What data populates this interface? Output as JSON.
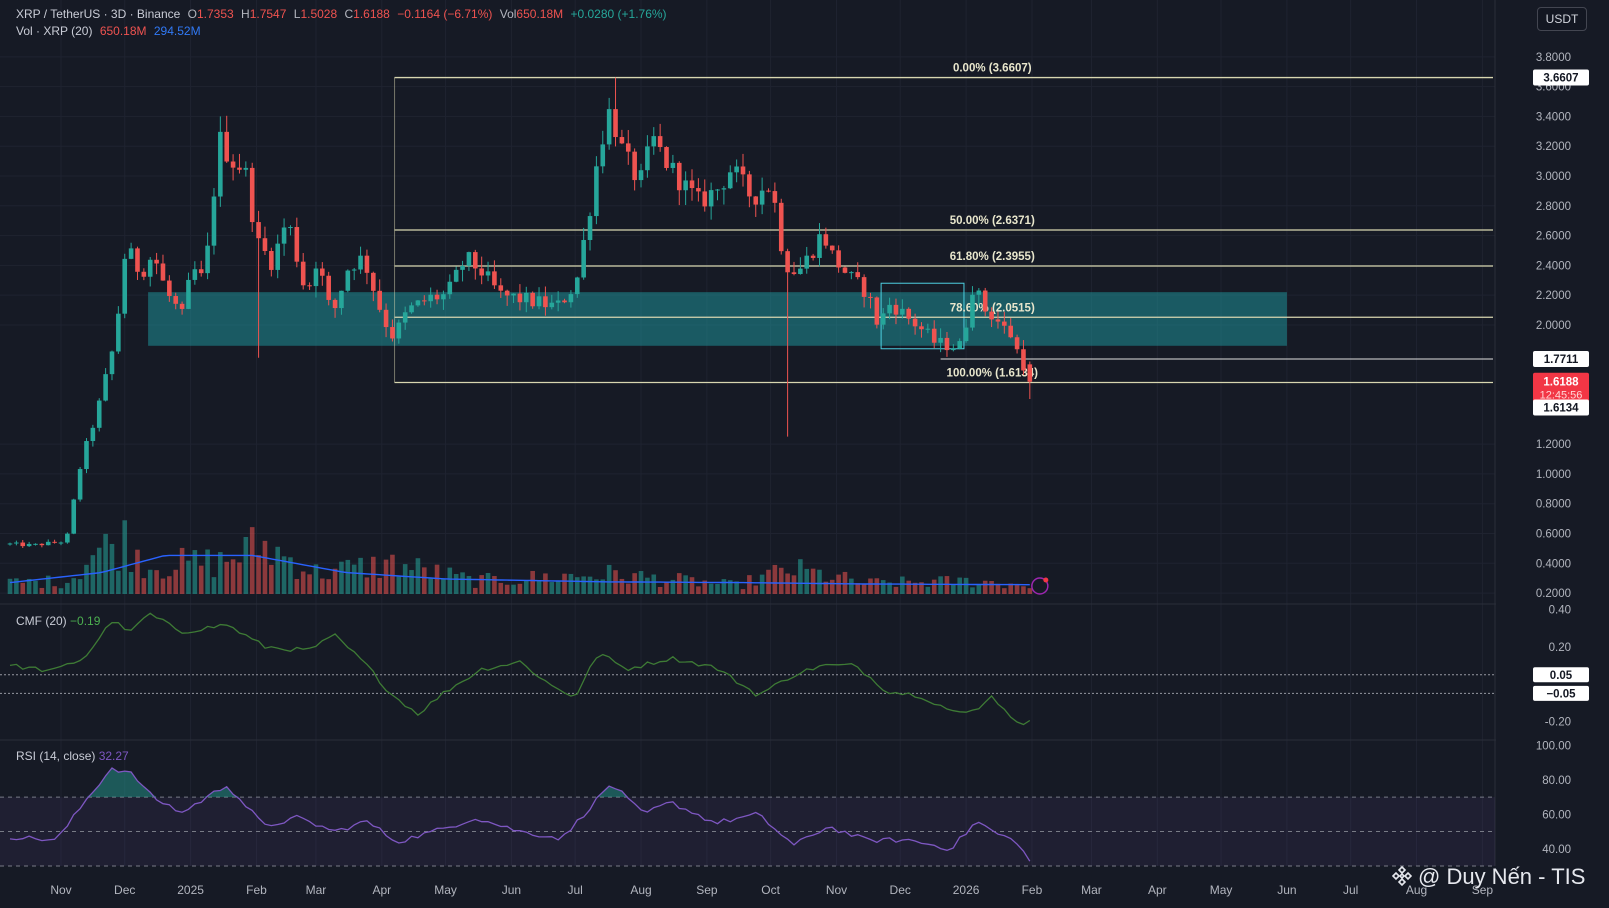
{
  "header": {
    "symbol": "XRP / TetherUS · 3D · Binance",
    "open_label": "O",
    "open": "1.7353",
    "high_label": "H",
    "high": "1.7547",
    "low_label": "L",
    "low": "1.5028",
    "close_label": "C",
    "close": "1.6188",
    "change": "−0.1164 (−6.71%)",
    "vol_label": "Vol",
    "vol": "650.18M",
    "vol_change": "+0.0280 (+1.76%)",
    "vol_indicator": "Vol · XRP (20)",
    "vol_value": "650.18M",
    "vol_ma": "294.52M"
  },
  "unit_button": "USDT",
  "cmf": {
    "label": "CMF (20)",
    "value": "−0.19"
  },
  "rsi": {
    "label": "RSI (14, close)",
    "value": "32.27"
  },
  "watermark": "@ Duy Nến - TIS",
  "colors": {
    "background": "#161a25",
    "up": "#26a69a",
    "down": "#ef5350",
    "fib_line": "#d8d6b0",
    "zone": "#1f8f98",
    "vol_ma": "#2962ff",
    "cmf_line": "#3e7b35",
    "rsi_line": "#7e57c2",
    "last_price_badge": "#f23645"
  },
  "chart_data": {
    "type": "candlestick",
    "title": "XRP / TetherUS · 3D · Binance",
    "x_axis": {
      "ticks": [
        "Nov",
        "Dec",
        "2025",
        "Feb",
        "Mar",
        "Apr",
        "May",
        "Jun",
        "Jul",
        "Aug",
        "Sep",
        "Oct",
        "Nov",
        "Dec",
        "2026",
        "Feb",
        "Mar",
        "Apr",
        "May",
        "Jun",
        "Jul",
        "Aug",
        "Sep"
      ],
      "tick_dates": [
        "2024-11-01",
        "2024-12-01",
        "2025-01-01",
        "2025-02-01",
        "2025-03-01",
        "2025-04-01",
        "2025-05-01",
        "2025-06-01",
        "2025-07-01",
        "2025-08-01",
        "2025-09-01",
        "2025-10-01",
        "2025-11-01",
        "2025-12-01",
        "2026-01-01",
        "2026-02-01",
        "2026-03-01",
        "2026-04-01",
        "2026-05-01",
        "2026-06-01",
        "2026-07-01",
        "2026-08-01",
        "2026-09-01"
      ],
      "range": [
        "2024-10-08",
        "2026-09-06"
      ]
    },
    "price_axis": {
      "ticks": [
        "3.8000",
        "3.6000",
        "3.4000",
        "3.2000",
        "3.0000",
        "2.8000",
        "2.6000",
        "2.4000",
        "2.2000",
        "2.0000",
        "1.2000",
        "1.0000",
        "0.8000",
        "0.6000",
        "0.4000",
        "0.2000"
      ],
      "range": [
        0.14,
        3.98
      ],
      "badges": [
        {
          "label": "3.6607",
          "value": 3.6607,
          "kind": "fib"
        },
        {
          "label": "1.7711",
          "value": 1.7711,
          "kind": "line"
        },
        {
          "label": "1.6188",
          "value": 1.6188,
          "kind": "last",
          "countdown": "12:45:56"
        },
        {
          "label": "1.6134",
          "value": 1.6134,
          "kind": "fib"
        }
      ]
    },
    "fibonacci": {
      "start_date": "2025-04-07",
      "end_date": "2026-09-06",
      "levels": [
        {
          "label": "0.00% (3.6607)",
          "value": 3.6607
        },
        {
          "label": "50.00% (2.6371)",
          "value": 2.6371
        },
        {
          "label": "61.80% (2.3955)",
          "value": 2.3955
        },
        {
          "label": "78.60% (2.0515)",
          "value": 2.0515
        },
        {
          "label": "100.00% (1.6134)",
          "value": 1.6134
        }
      ]
    },
    "zones": [
      {
        "start_date": "2024-12-12",
        "end_date": "2026-06-01",
        "top": 2.22,
        "bottom": 1.86
      }
    ],
    "rectangles": [
      {
        "start_date": "2025-11-22",
        "end_date": "2025-12-31",
        "top": 2.28,
        "bottom": 1.84
      }
    ],
    "lines": [
      {
        "label": "1.7711",
        "start_date": "2025-12-20",
        "end_date": "2026-09-06",
        "value": 1.7711
      }
    ],
    "anchors": [
      {
        "date": "2024-10-08",
        "close": 0.53
      },
      {
        "date": "2024-10-20",
        "close": 0.52
      },
      {
        "date": "2024-11-05",
        "close": 0.55
      },
      {
        "date": "2024-11-12",
        "close": 1.08
      },
      {
        "date": "2024-11-20",
        "close": 1.44
      },
      {
        "date": "2024-11-28",
        "close": 1.9
      },
      {
        "date": "2024-12-03",
        "close": 2.52
      },
      {
        "date": "2024-12-10",
        "close": 2.35
      },
      {
        "date": "2024-12-16",
        "close": 2.48
      },
      {
        "date": "2024-12-22",
        "close": 2.22
      },
      {
        "date": "2024-12-30",
        "close": 2.05
      },
      {
        "date": "2025-01-03",
        "close": 2.38
      },
      {
        "date": "2025-01-09",
        "close": 2.29
      },
      {
        "date": "2025-01-16",
        "close": 3.25
      },
      {
        "date": "2025-01-22",
        "close": 3.1
      },
      {
        "date": "2025-01-28",
        "close": 3.05
      },
      {
        "date": "2025-02-03",
        "close": 2.55
      },
      {
        "date": "2025-02-10",
        "close": 2.42
      },
      {
        "date": "2025-02-17",
        "close": 2.72
      },
      {
        "date": "2025-02-26",
        "close": 2.2
      },
      {
        "date": "2025-03-03",
        "close": 2.45
      },
      {
        "date": "2025-03-10",
        "close": 2.05
      },
      {
        "date": "2025-03-18",
        "close": 2.4
      },
      {
        "date": "2025-03-25",
        "close": 2.45
      },
      {
        "date": "2025-04-03",
        "close": 2.05
      },
      {
        "date": "2025-04-08",
        "close": 1.92
      },
      {
        "date": "2025-04-15",
        "close": 2.1
      },
      {
        "date": "2025-04-25",
        "close": 2.18
      },
      {
        "date": "2025-05-03",
        "close": 2.2
      },
      {
        "date": "2025-05-12",
        "close": 2.45
      },
      {
        "date": "2025-05-20",
        "close": 2.35
      },
      {
        "date": "2025-05-28",
        "close": 2.2
      },
      {
        "date": "2025-06-05",
        "close": 2.18
      },
      {
        "date": "2025-06-15",
        "close": 2.15
      },
      {
        "date": "2025-06-24",
        "close": 2.12
      },
      {
        "date": "2025-07-03",
        "close": 2.28
      },
      {
        "date": "2025-07-09",
        "close": 2.75
      },
      {
        "date": "2025-07-14",
        "close": 3.2
      },
      {
        "date": "2025-07-19",
        "close": 3.45
      },
      {
        "date": "2025-07-25",
        "close": 3.15
      },
      {
        "date": "2025-08-02",
        "close": 2.95
      },
      {
        "date": "2025-08-08",
        "close": 3.25
      },
      {
        "date": "2025-08-14",
        "close": 3.1
      },
      {
        "date": "2025-08-22",
        "close": 2.95
      },
      {
        "date": "2025-08-30",
        "close": 2.82
      },
      {
        "date": "2025-09-08",
        "close": 2.92
      },
      {
        "date": "2025-09-14",
        "close": 3.05
      },
      {
        "date": "2025-09-24",
        "close": 2.85
      },
      {
        "date": "2025-10-01",
        "close": 2.95
      },
      {
        "date": "2025-10-04",
        "close": 2.85
      },
      {
        "date": "2025-10-09",
        "close": 2.42
      },
      {
        "date": "2025-10-15",
        "close": 2.35
      },
      {
        "date": "2025-10-20",
        "close": 2.45
      },
      {
        "date": "2025-10-27",
        "close": 2.62
      },
      {
        "date": "2025-11-01",
        "close": 2.45
      },
      {
        "date": "2025-11-10",
        "close": 2.3
      },
      {
        "date": "2025-11-17",
        "close": 2.22
      },
      {
        "date": "2025-11-22",
        "close": 2.0
      },
      {
        "date": "2025-11-28",
        "close": 2.15
      },
      {
        "date": "2025-12-06",
        "close": 2.05
      },
      {
        "date": "2025-12-12",
        "close": 1.98
      },
      {
        "date": "2025-12-19",
        "close": 1.88
      },
      {
        "date": "2025-12-27",
        "close": 1.86
      },
      {
        "date": "2025-12-31",
        "close": 1.86
      },
      {
        "date": "2026-01-03",
        "close": 2.05
      },
      {
        "date": "2026-01-06",
        "close": 2.3
      },
      {
        "date": "2026-01-10",
        "close": 2.12
      },
      {
        "date": "2026-01-16",
        "close": 2.05
      },
      {
        "date": "2026-01-22",
        "close": 1.95
      },
      {
        "date": "2026-01-25",
        "close": 1.92
      },
      {
        "date": "2026-01-28",
        "close": 1.7353
      }
    ],
    "last_candle": {
      "date": "2026-01-31",
      "open": 1.7353,
      "high": 1.7547,
      "low": 1.5028,
      "close": 1.6188
    },
    "extreme_wicks": [
      {
        "date": "2025-10-10",
        "low": 1.25
      },
      {
        "date": "2025-07-19",
        "high": 3.6607
      },
      {
        "date": "2025-01-16",
        "high": 3.4
      },
      {
        "date": "2025-02-03",
        "low": 1.78
      }
    ],
    "volume": {
      "label": "Vol · XRP (20)",
      "anchors": [
        {
          "date": "2024-10-08",
          "v": 0.16
        },
        {
          "date": "2024-11-05",
          "v": 0.18
        },
        {
          "date": "2024-11-15",
          "v": 0.55
        },
        {
          "date": "2024-12-01",
          "v": 0.75
        },
        {
          "date": "2024-12-12",
          "v": 0.4
        },
        {
          "date": "2025-01-16",
          "v": 0.45
        },
        {
          "date": "2025-02-03",
          "v": 0.7
        },
        {
          "date": "2025-03-01",
          "v": 0.3
        },
        {
          "date": "2025-04-07",
          "v": 0.42
        },
        {
          "date": "2025-05-15",
          "v": 0.18
        },
        {
          "date": "2025-07-15",
          "v": 0.28
        },
        {
          "date": "2025-09-15",
          "v": 0.12
        },
        {
          "date": "2025-10-10",
          "v": 0.35
        },
        {
          "date": "2025-11-15",
          "v": 0.15
        },
        {
          "date": "2026-01-06",
          "v": 0.18
        },
        {
          "date": "2026-01-31",
          "v": 0.12
        }
      ],
      "ma_anchors": [
        {
          "date": "2024-10-08",
          "v": 0.16
        },
        {
          "date": "2024-11-20",
          "v": 0.3
        },
        {
          "date": "2024-12-20",
          "v": 0.54
        },
        {
          "date": "2025-01-30",
          "v": 0.54
        },
        {
          "date": "2025-03-15",
          "v": 0.3
        },
        {
          "date": "2025-05-01",
          "v": 0.21
        },
        {
          "date": "2025-07-15",
          "v": 0.17
        },
        {
          "date": "2025-09-15",
          "v": 0.16
        },
        {
          "date": "2025-11-15",
          "v": 0.14
        },
        {
          "date": "2026-01-31",
          "v": 0.13
        }
      ]
    },
    "cmf": {
      "label": "CMF (20)",
      "value": -0.19,
      "axis_ticks": [
        "0.40",
        "0.20",
        "-0.20"
      ],
      "range": [
        -0.29,
        0.42
      ],
      "levels": [
        {
          "label": "0.05",
          "value": 0.05
        },
        {
          "label": "−0.05",
          "value": -0.05
        }
      ],
      "series": [
        {
          "date": "2024-10-08",
          "v": 0.1
        },
        {
          "date": "2024-10-28",
          "v": 0.07
        },
        {
          "date": "2024-11-12",
          "v": 0.14
        },
        {
          "date": "2024-11-25",
          "v": 0.34
        },
        {
          "date": "2024-12-04",
          "v": 0.28
        },
        {
          "date": "2024-12-12",
          "v": 0.38
        },
        {
          "date": "2024-12-28",
          "v": 0.28
        },
        {
          "date": "2025-01-18",
          "v": 0.32
        },
        {
          "date": "2025-02-05",
          "v": 0.2
        },
        {
          "date": "2025-02-25",
          "v": 0.18
        },
        {
          "date": "2025-03-10",
          "v": 0.26
        },
        {
          "date": "2025-03-25",
          "v": 0.1
        },
        {
          "date": "2025-04-05",
          "v": -0.05
        },
        {
          "date": "2025-04-18",
          "v": -0.16
        },
        {
          "date": "2025-05-01",
          "v": -0.04
        },
        {
          "date": "2025-05-18",
          "v": 0.08
        },
        {
          "date": "2025-06-05",
          "v": 0.12
        },
        {
          "date": "2025-06-20",
          "v": -0.01
        },
        {
          "date": "2025-07-01",
          "v": -0.07
        },
        {
          "date": "2025-07-12",
          "v": 0.17
        },
        {
          "date": "2025-07-25",
          "v": 0.08
        },
        {
          "date": "2025-08-15",
          "v": 0.14
        },
        {
          "date": "2025-09-05",
          "v": 0.09
        },
        {
          "date": "2025-09-25",
          "v": -0.06
        },
        {
          "date": "2025-10-12",
          "v": 0.05
        },
        {
          "date": "2025-10-25",
          "v": 0.1
        },
        {
          "date": "2025-11-10",
          "v": 0.1
        },
        {
          "date": "2025-11-25",
          "v": -0.04
        },
        {
          "date": "2025-12-10",
          "v": -0.06
        },
        {
          "date": "2025-12-28",
          "v": -0.16
        },
        {
          "date": "2026-01-06",
          "v": -0.14
        },
        {
          "date": "2026-01-12",
          "v": -0.06
        },
        {
          "date": "2026-01-20",
          "v": -0.14
        },
        {
          "date": "2026-01-27",
          "v": -0.24
        },
        {
          "date": "2026-01-31",
          "v": -0.19
        }
      ]
    },
    "rsi": {
      "label": "RSI (14, close)",
      "value": 32.27,
      "axis_ticks": [
        "100.00",
        "80.00",
        "60.00",
        "40.00"
      ],
      "range": [
        30,
        102
      ],
      "band": [
        30,
        70
      ],
      "mid": 50,
      "series": [
        {
          "date": "2024-10-08",
          "v": 47
        },
        {
          "date": "2024-10-30",
          "v": 45
        },
        {
          "date": "2024-11-15",
          "v": 72
        },
        {
          "date": "2024-11-25",
          "v": 87
        },
        {
          "date": "2024-12-05",
          "v": 83
        },
        {
          "date": "2024-12-14",
          "v": 70
        },
        {
          "date": "2024-12-28",
          "v": 61
        },
        {
          "date": "2025-01-18",
          "v": 77
        },
        {
          "date": "2025-02-05",
          "v": 53
        },
        {
          "date": "2025-02-20",
          "v": 58
        },
        {
          "date": "2025-03-10",
          "v": 50
        },
        {
          "date": "2025-03-25",
          "v": 56
        },
        {
          "date": "2025-04-08",
          "v": 44
        },
        {
          "date": "2025-05-01",
          "v": 52
        },
        {
          "date": "2025-05-15",
          "v": 58
        },
        {
          "date": "2025-06-05",
          "v": 50
        },
        {
          "date": "2025-06-25",
          "v": 46
        },
        {
          "date": "2025-07-18",
          "v": 78
        },
        {
          "date": "2025-08-02",
          "v": 60
        },
        {
          "date": "2025-08-15",
          "v": 67
        },
        {
          "date": "2025-09-05",
          "v": 55
        },
        {
          "date": "2025-09-25",
          "v": 60
        },
        {
          "date": "2025-10-12",
          "v": 42
        },
        {
          "date": "2025-10-28",
          "v": 53
        },
        {
          "date": "2025-11-15",
          "v": 45
        },
        {
          "date": "2025-12-05",
          "v": 45
        },
        {
          "date": "2025-12-25",
          "v": 40
        },
        {
          "date": "2026-01-06",
          "v": 56
        },
        {
          "date": "2026-01-15",
          "v": 49
        },
        {
          "date": "2026-01-25",
          "v": 44
        },
        {
          "date": "2026-01-31",
          "v": 32.27
        }
      ]
    }
  }
}
